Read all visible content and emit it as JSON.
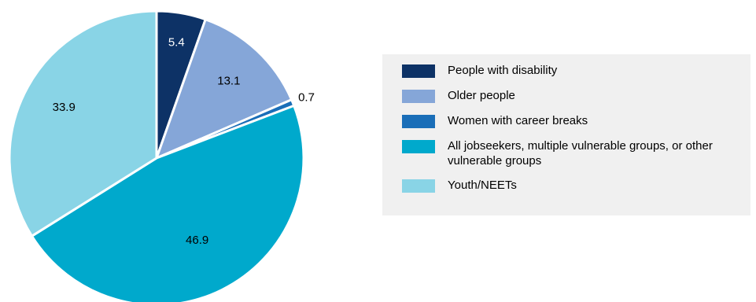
{
  "chart_data": {
    "type": "pie",
    "start_angle_deg": 0,
    "direction": "clockwise",
    "legend_position": "right",
    "series": [
      {
        "name": "People with disability",
        "value": 5.4,
        "color": "#0d3266",
        "label_color": "#ffffff"
      },
      {
        "name": "Older people",
        "value": 13.1,
        "color": "#85a6d8",
        "label_color": "#000000"
      },
      {
        "name": "Women with career breaks",
        "value": 0.7,
        "color": "#1a6eb8",
        "label_color": "#000000"
      },
      {
        "name": "All jobseekers, multiple vulnerable groups, or other vulnerable groups",
        "value": 46.9,
        "color": "#00a9cc",
        "label_color": "#000000"
      },
      {
        "name": "Youth/NEETs",
        "value": 33.9,
        "color": "#89d4e6",
        "label_color": "#000000"
      }
    ]
  }
}
